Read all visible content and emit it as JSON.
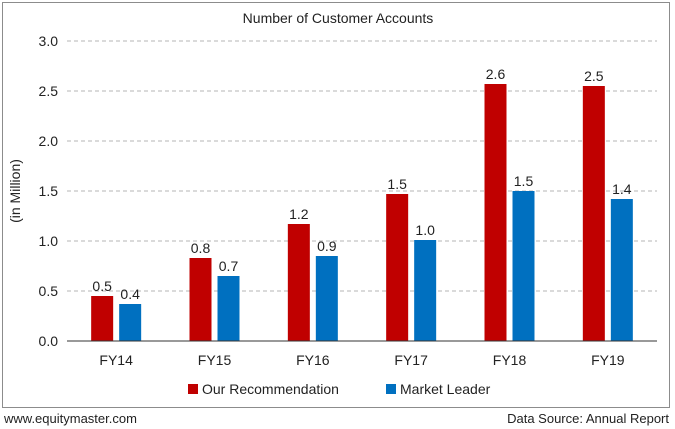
{
  "chart_data": {
    "type": "bar",
    "title": "Number of Customer Accounts",
    "xlabel": "",
    "ylabel": "(in Million)",
    "categories": [
      "FY14",
      "FY15",
      "FY16",
      "FY17",
      "FY18",
      "FY19"
    ],
    "series": [
      {
        "name": "Our Recommendation",
        "color": "#c00000",
        "values": [
          0.45,
          0.83,
          1.17,
          1.47,
          2.57,
          2.55
        ],
        "labels": [
          "0.5",
          "0.8",
          "1.2",
          "1.5",
          "2.6",
          "2.5"
        ]
      },
      {
        "name": "Market Leader",
        "color": "#0070c0",
        "values": [
          0.37,
          0.65,
          0.85,
          1.01,
          1.5,
          1.42
        ],
        "labels": [
          "0.4",
          "0.7",
          "0.9",
          "1.0",
          "1.5",
          "1.4"
        ]
      }
    ],
    "ylim": [
      0,
      3.0
    ],
    "yticks": [
      "0.0",
      "0.5",
      "1.0",
      "1.5",
      "2.0",
      "2.5",
      "3.0"
    ],
    "grid": true,
    "legend_position": "bottom"
  },
  "footer": {
    "left": "www.equitymaster.com",
    "right": "Data Source: Annual Report"
  }
}
